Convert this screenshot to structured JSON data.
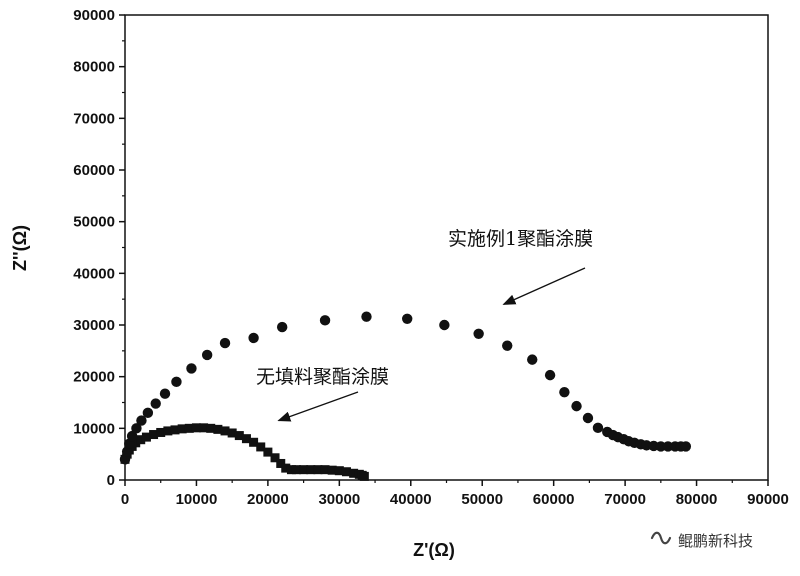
{
  "chart_data": {
    "type": "scatter",
    "xlabel": "Z'(Ω)",
    "ylabel": "Z''(Ω)",
    "xlim": [
      0,
      90000
    ],
    "ylim": [
      0,
      90000
    ],
    "xticks": [
      "0",
      "10000",
      "20000",
      "30000",
      "40000",
      "50000",
      "60000",
      "70000",
      "80000",
      "90000"
    ],
    "yticks": [
      "0",
      "10000",
      "20000",
      "30000",
      "40000",
      "50000",
      "60000",
      "70000",
      "80000",
      "90000"
    ],
    "grid": false,
    "series": [
      {
        "name": "无填料聚酯涂膜",
        "marker": "square",
        "color": "#111111",
        "points": [
          [
            0,
            4000
          ],
          [
            300,
            5000
          ],
          [
            600,
            5800
          ],
          [
            1000,
            6500
          ],
          [
            1500,
            7200
          ],
          [
            2200,
            7800
          ],
          [
            3000,
            8300
          ],
          [
            4000,
            8800
          ],
          [
            5000,
            9200
          ],
          [
            6000,
            9500
          ],
          [
            7000,
            9700
          ],
          [
            8000,
            9900
          ],
          [
            9000,
            10000
          ],
          [
            10000,
            10100
          ],
          [
            11000,
            10100
          ],
          [
            12000,
            10000
          ],
          [
            13000,
            9800
          ],
          [
            14000,
            9500
          ],
          [
            15000,
            9100
          ],
          [
            16000,
            8600
          ],
          [
            17000,
            8000
          ],
          [
            18000,
            7300
          ],
          [
            19000,
            6400
          ],
          [
            20000,
            5400
          ],
          [
            21000,
            4300
          ],
          [
            21800,
            3200
          ],
          [
            22500,
            2300
          ],
          [
            23300,
            2000
          ],
          [
            24000,
            2000
          ],
          [
            25000,
            2000
          ],
          [
            26000,
            2000
          ],
          [
            27000,
            2000
          ],
          [
            28000,
            2000
          ],
          [
            29000,
            1900
          ],
          [
            30000,
            1800
          ],
          [
            31000,
            1600
          ],
          [
            32000,
            1300
          ],
          [
            32800,
            1100
          ],
          [
            33200,
            900
          ],
          [
            33500,
            700
          ]
        ]
      },
      {
        "name": "实施例1聚酯涂膜",
        "marker": "circle",
        "color": "#111111",
        "points": [
          [
            0,
            4000
          ],
          [
            300,
            5500
          ],
          [
            600,
            7000
          ],
          [
            1000,
            8500
          ],
          [
            1600,
            10000
          ],
          [
            2300,
            11500
          ],
          [
            3200,
            13000
          ],
          [
            4300,
            14800
          ],
          [
            5600,
            16700
          ],
          [
            7200,
            19000
          ],
          [
            9300,
            21600
          ],
          [
            11500,
            24200
          ],
          [
            14000,
            26500
          ],
          [
            18000,
            27500
          ],
          [
            22000,
            29600
          ],
          [
            28000,
            30900
          ],
          [
            33800,
            31600
          ],
          [
            39500,
            31200
          ],
          [
            44700,
            30000
          ],
          [
            49500,
            28300
          ],
          [
            53500,
            26000
          ],
          [
            57000,
            23300
          ],
          [
            59500,
            20300
          ],
          [
            61500,
            17000
          ],
          [
            63200,
            14300
          ],
          [
            64800,
            12000
          ],
          [
            66200,
            10100
          ],
          [
            67500,
            9300
          ],
          [
            68300,
            8700
          ],
          [
            69000,
            8300
          ],
          [
            69800,
            7900
          ],
          [
            70500,
            7500
          ],
          [
            71300,
            7200
          ],
          [
            72200,
            6900
          ],
          [
            73000,
            6700
          ],
          [
            74000,
            6600
          ],
          [
            75000,
            6500
          ],
          [
            76000,
            6500
          ],
          [
            77000,
            6500
          ],
          [
            77800,
            6500
          ],
          [
            78500,
            6500
          ]
        ]
      }
    ],
    "annotations": [
      {
        "text": "实施例1聚酯涂膜",
        "arrow_to": [
          53000,
          34000
        ]
      },
      {
        "text": "无填料聚酯涂膜",
        "arrow_to": [
          21500,
          11500
        ]
      }
    ]
  },
  "watermark": {
    "icon": "wechat-channel-icon",
    "text": "鲲鹏新科技"
  }
}
